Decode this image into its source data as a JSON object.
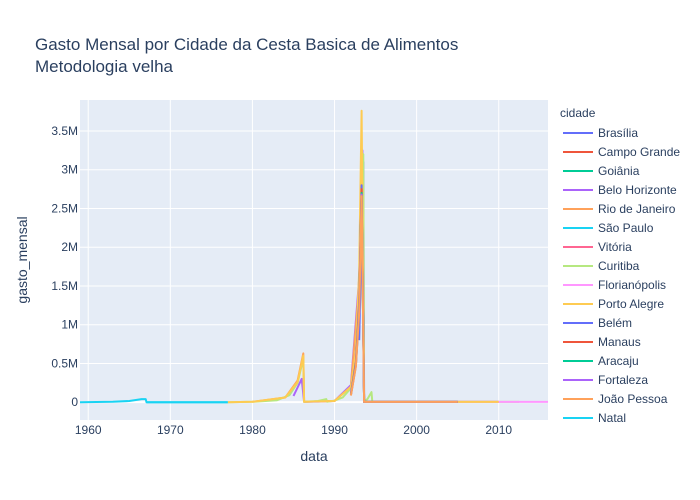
{
  "chart_data": {
    "type": "line",
    "title": "Gasto Mensal por Cidade da Cesta Basica de Alimentos",
    "subtitle": "Metodologia velha",
    "xlabel": "data",
    "ylabel": "gasto_mensal",
    "xlim": [
      1959,
      2016
    ],
    "ylim": [
      -230000,
      3900000
    ],
    "x_ticks": [
      1960,
      1970,
      1980,
      1990,
      2000,
      2010
    ],
    "x_tick_labels": [
      "1960",
      "1970",
      "1980",
      "1990",
      "2000",
      "2010"
    ],
    "y_ticks": [
      0,
      500000,
      1000000,
      1500000,
      2000000,
      2500000,
      3000000,
      3500000
    ],
    "y_tick_labels": [
      "0",
      "0.5M",
      "1M",
      "1.5M",
      "2M",
      "2.5M",
      "3M",
      "3.5M"
    ],
    "grid": true,
    "legend_title": "cidade",
    "legend_placement": "right",
    "series": [
      {
        "name": "Brasília",
        "color": "#636efa",
        "x": [
          1993.0,
          1993.3,
          1993.5,
          1993.6,
          1995,
          2010
        ],
        "y": [
          800000,
          2200000,
          3100000,
          3000,
          3000,
          3500
        ]
      },
      {
        "name": "Campo Grande",
        "color": "#EF553B",
        "x": [
          1992.0,
          1992.6,
          1993.0,
          1993.3,
          1993.6,
          1995,
          2005
        ],
        "y": [
          150000,
          600000,
          1500000,
          3000000,
          3000,
          3000,
          3200
        ]
      },
      {
        "name": "Goiânia",
        "color": "#00cc96",
        "x": [
          1992.0,
          1992.6,
          1993.0,
          1993.3,
          1993.6,
          1995,
          2005
        ],
        "y": [
          140000,
          580000,
          1450000,
          2950000,
          3000,
          3000,
          3200
        ]
      },
      {
        "name": "Belo Horizonte",
        "color": "#ab63fa",
        "x": [
          1985.0,
          1986.0,
          1986.3,
          1988,
          1990.0,
          1992.0,
          1993.0,
          1993.4,
          1993.6,
          1995,
          2010
        ],
        "y": [
          80000,
          300000,
          5000,
          8000,
          15000,
          220000,
          1600000,
          3250000,
          5000,
          3000,
          3500
        ]
      },
      {
        "name": "Rio de Janeiro",
        "color": "#FFA15A",
        "x": [
          1980.0,
          1984.0,
          1985.5,
          1986.2,
          1986.3,
          1988,
          1990.0,
          1992.0,
          1993.0,
          1993.3,
          1993.6,
          1995,
          2010
        ],
        "y": [
          5000,
          60000,
          280000,
          630000,
          5000,
          10000,
          15000,
          200000,
          1500000,
          3200000,
          3000,
          3000,
          3500
        ]
      },
      {
        "name": "São Paulo",
        "color": "#19d3f3",
        "x": [
          1959.0,
          1963.0,
          1965.0,
          1966.5,
          1967.0,
          1967.1,
          1975.0,
          1977.0
        ],
        "y": [
          0,
          5000,
          15000,
          40000,
          40000,
          0,
          0,
          0
        ]
      },
      {
        "name": "Vitória",
        "color": "#FF6692",
        "x": [
          1992.0,
          1992.6,
          1993.0,
          1993.3,
          1993.6,
          1995,
          2005
        ],
        "y": [
          130000,
          560000,
          1400000,
          2900000,
          3000,
          3000,
          3200
        ]
      },
      {
        "name": "Curitiba",
        "color": "#B6E880",
        "x": [
          1977.0,
          1980.0,
          1983.0,
          1984.5,
          1985.5,
          1986.2,
          1986.3,
          1988.0,
          1989.0,
          1989.1,
          1990.0,
          1991.0,
          1992.0,
          1992.5,
          1993.0,
          1993.3,
          1993.5,
          1993.6,
          1994.0,
          1994.5,
          1994.6,
          2000.0,
          2005.0,
          2012.5
        ],
        "y": [
          0,
          5000,
          25000,
          90000,
          250000,
          560000,
          5000,
          15000,
          40000,
          5000,
          20000,
          60000,
          180000,
          500000,
          1300000,
          3100000,
          3200000,
          10000,
          40000,
          130000,
          3000,
          3000,
          3200,
          3500
        ]
      },
      {
        "name": "Florianópolis",
        "color": "#FF97FF",
        "x": [
          1992.0,
          1992.6,
          1993.0,
          1993.3,
          1993.6,
          1995,
          2012.5,
          2016.0
        ],
        "y": [
          120000,
          540000,
          1350000,
          2850000,
          3000,
          3000,
          3500,
          4000
        ]
      },
      {
        "name": "Porto Alegre",
        "color": "#FECB52",
        "x": [
          1977.0,
          1980.0,
          1984.0,
          1985.5,
          1986.2,
          1986.3,
          1988,
          1990.0,
          1992.0,
          1992.6,
          1993.0,
          1993.3,
          1993.6,
          1995,
          2010
        ],
        "y": [
          0,
          5000,
          60000,
          260000,
          600000,
          5000,
          10000,
          15000,
          200000,
          650000,
          1700000,
          3760000,
          3000,
          3000,
          3500
        ]
      },
      {
        "name": "Belém",
        "color": "#636efa",
        "x": [
          1992.0,
          1992.6,
          1993.0,
          1993.3,
          1993.6,
          1995,
          2005
        ],
        "y": [
          110000,
          520000,
          1300000,
          2800000,
          3000,
          3000,
          3200
        ]
      },
      {
        "name": "Manaus",
        "color": "#EF553B",
        "x": [
          1992.0,
          1992.6,
          1993.0,
          1993.3,
          1993.6,
          1995,
          2005
        ],
        "y": [
          100000,
          500000,
          1250000,
          2750000,
          3000,
          3000,
          3200
        ]
      },
      {
        "name": "Aracaju",
        "color": "#00cc96",
        "x": [
          1992.0,
          1992.6,
          1993.0,
          1993.3,
          1993.6,
          1995,
          2005
        ],
        "y": [
          95000,
          480000,
          1200000,
          2700000,
          3000,
          3000,
          3200
        ]
      },
      {
        "name": "Fortaleza",
        "color": "#ab63fa",
        "x": [
          1992.0,
          1992.6,
          1993.0,
          1993.3,
          1993.6,
          1995,
          2005
        ],
        "y": [
          90000,
          470000,
          1180000,
          2680000,
          3000,
          3000,
          3200
        ]
      },
      {
        "name": "João Pessoa",
        "color": "#FFA15A",
        "x": [
          1992.0,
          1992.6,
          1993.0,
          1993.3,
          1993.6,
          1995,
          2005
        ],
        "y": [
          85000,
          460000,
          1160000,
          2660000,
          3000,
          3000,
          3200
        ]
      },
      {
        "name": "Natal",
        "color": "#19d3f3",
        "x": [
          1967.1,
          1970.0,
          1975.0,
          1977.0
        ],
        "y": [
          0,
          0,
          0,
          0
        ]
      }
    ]
  }
}
